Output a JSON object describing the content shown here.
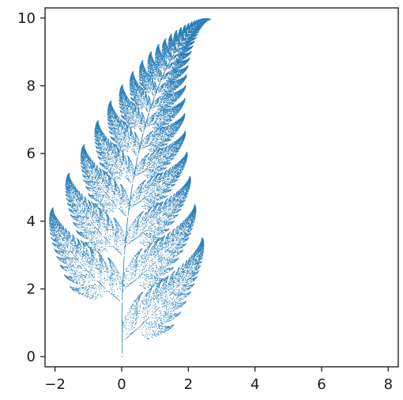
{
  "chart_data": {
    "type": "scatter",
    "title": "",
    "xlabel": "",
    "ylabel": "",
    "xlim": [
      -2.3,
      8.3
    ],
    "ylim": [
      -0.3,
      10.3
    ],
    "x_ticks": [
      -2,
      0,
      2,
      4,
      6,
      8
    ],
    "y_ticks": [
      0,
      2,
      4,
      6,
      8,
      10
    ],
    "x_tick_labels": [
      "−2",
      "0",
      "2",
      "4",
      "6",
      "8"
    ],
    "y_tick_labels": [
      "0",
      "2",
      "4",
      "6",
      "8",
      "10"
    ],
    "grid": false,
    "legend": "none",
    "series": [
      {
        "description_of_shape": "",
        "color": "#1f77b4",
        "generator": "barnsley-fern",
        "point_count": 60000
      }
    ]
  }
}
